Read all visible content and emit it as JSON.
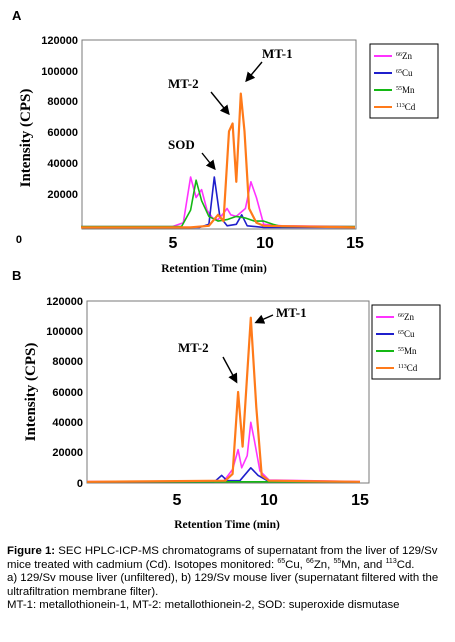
{
  "panels": [
    {
      "label": "A",
      "y_label": "Intensity (CPS)",
      "x_label": "Retention Time (min)",
      "legend": [
        {
          "mass": "66",
          "element": "Zn",
          "color": "#ff33ff"
        },
        {
          "mass": "65",
          "element": "Cu",
          "color": "#1f1fcc"
        },
        {
          "mass": "55",
          "element": "Mn",
          "color": "#14b814"
        },
        {
          "mass": "113",
          "element": "Cd",
          "color": "#ff7a1a"
        }
      ],
      "annotations": [
        {
          "text": "MT-1"
        },
        {
          "text": "MT-2"
        },
        {
          "text": "SOD"
        }
      ],
      "y_ticks": [
        "120000",
        "100000",
        "80000",
        "60000",
        "40000",
        "20000",
        "0"
      ],
      "x_ticks": [
        "5",
        "10",
        "15"
      ]
    },
    {
      "label": "B",
      "y_label": "Intensity (CPS)",
      "x_label": "Retention Time (min)",
      "legend": [
        {
          "mass": "66",
          "element": "Zn",
          "color": "#ff33ff"
        },
        {
          "mass": "65",
          "element": "Cu",
          "color": "#1f1fcc"
        },
        {
          "mass": "55",
          "element": "Mn",
          "color": "#14b814"
        },
        {
          "mass": "113",
          "element": "Cd",
          "color": "#ff7a1a"
        }
      ],
      "annotations": [
        {
          "text": "MT-1"
        },
        {
          "text": "MT-2"
        }
      ],
      "y_ticks": [
        "120000",
        "100000",
        "80000",
        "60000",
        "40000",
        "20000",
        "0"
      ],
      "x_ticks": [
        "5",
        "10",
        "15"
      ]
    }
  ],
  "caption": {
    "figure_label": "Figure 1:",
    "line1_pre": " SEC HPLC-ICP-MS chromatograms of supernatant from the liver of 129/Sv mice treated with cadmium (Cd). Isotopes monitored: ",
    "isotopes": [
      {
        "mass": "65",
        "element": "Cu",
        "after": ", "
      },
      {
        "mass": "66",
        "element": "Zn",
        "after": ", "
      },
      {
        "mass": "55",
        "element": "Mn",
        "after": ", and "
      },
      {
        "mass": "113",
        "element": "Cd",
        "after": "."
      }
    ],
    "line2": "a) 129/Sv mouse liver (unfiltered), b) 129/Sv mouse liver (supernatant filtered with the ultrafiltration membrane filter).",
    "line3": "MT-1: metallothionein-1, MT-2: metallothionein-2, SOD: superoxide dismutase"
  },
  "chart_data": [
    {
      "type": "line",
      "title": "",
      "xlabel": "Retention Time (min)",
      "ylabel": "Intensity (CPS)",
      "xlim": [
        0,
        15
      ],
      "ylim": [
        0,
        120000
      ],
      "grid": false,
      "legend_position": "top-right",
      "series": [
        {
          "name": "66Zn",
          "color": "#ff33ff",
          "points": [
            [
              0,
              1500
            ],
            [
              5,
              1500
            ],
            [
              5.6,
              4000
            ],
            [
              6.0,
              33000
            ],
            [
              6.3,
              20000
            ],
            [
              6.6,
              25000
            ],
            [
              6.9,
              12000
            ],
            [
              7.2,
              7000
            ],
            [
              7.5,
              6000
            ],
            [
              7.8,
              10000
            ],
            [
              8.0,
              13000
            ],
            [
              8.2,
              9000
            ],
            [
              8.5,
              8000
            ],
            [
              9.0,
              13000
            ],
            [
              9.3,
              30000
            ],
            [
              9.6,
              20000
            ],
            [
              10,
              3000
            ],
            [
              11,
              2000
            ],
            [
              15,
              1500
            ]
          ]
        },
        {
          "name": "65Cu",
          "color": "#1f1fcc",
          "points": [
            [
              0,
              1000
            ],
            [
              6.5,
              1000
            ],
            [
              7.0,
              3000
            ],
            [
              7.3,
              33000
            ],
            [
              7.6,
              8000
            ],
            [
              8.0,
              2000
            ],
            [
              8.5,
              3000
            ],
            [
              8.8,
              9000
            ],
            [
              9.1,
              2000
            ],
            [
              10,
              1000
            ],
            [
              15,
              1000
            ]
          ]
        },
        {
          "name": "55Mn",
          "color": "#14b814",
          "points": [
            [
              0,
              1500
            ],
            [
              5.5,
              1500
            ],
            [
              6.0,
              12000
            ],
            [
              6.3,
              31000
            ],
            [
              6.6,
              18000
            ],
            [
              7.0,
              8000
            ],
            [
              7.5,
              5000
            ],
            [
              8.0,
              6000
            ],
            [
              8.5,
              8000
            ],
            [
              9.0,
              7000
            ],
            [
              9.5,
              5000
            ],
            [
              10,
              5000
            ],
            [
              10.5,
              3000
            ],
            [
              11,
              1500
            ],
            [
              15,
              1500
            ]
          ]
        },
        {
          "name": "113Cd",
          "color": "#ff7a1a",
          "points": [
            [
              0,
              1000
            ],
            [
              6.0,
              1000
            ],
            [
              7.0,
              2000
            ],
            [
              7.5,
              9000
            ],
            [
              7.8,
              5000
            ],
            [
              8.1,
              62000
            ],
            [
              8.3,
              67000
            ],
            [
              8.5,
              30000
            ],
            [
              8.75,
              86000
            ],
            [
              8.95,
              62000
            ],
            [
              9.2,
              13000
            ],
            [
              9.6,
              4000
            ],
            [
              10,
              2000
            ],
            [
              15,
              1000
            ]
          ]
        }
      ]
    },
    {
      "type": "line",
      "title": "",
      "xlabel": "Retention Time (min)",
      "ylabel": "Intensity (CPS)",
      "xlim": [
        0,
        15
      ],
      "ylim": [
        0,
        120000
      ],
      "grid": false,
      "legend_position": "top-right",
      "series": [
        {
          "name": "66Zn",
          "color": "#ff33ff",
          "points": [
            [
              0,
              1000
            ],
            [
              7.5,
              1000
            ],
            [
              8.0,
              9000
            ],
            [
              8.3,
              22000
            ],
            [
              8.5,
              10000
            ],
            [
              8.8,
              18000
            ],
            [
              9.0,
              40000
            ],
            [
              9.2,
              28000
            ],
            [
              9.5,
              8000
            ],
            [
              10,
              2000
            ],
            [
              15,
              1000
            ]
          ]
        },
        {
          "name": "65Cu",
          "color": "#1f1fcc",
          "points": [
            [
              0,
              800
            ],
            [
              7.0,
              800
            ],
            [
              7.4,
              5000
            ],
            [
              7.7,
              1500
            ],
            [
              8.4,
              1500
            ],
            [
              9.0,
              10000
            ],
            [
              9.4,
              5000
            ],
            [
              10,
              1000
            ],
            [
              15,
              800
            ]
          ]
        },
        {
          "name": "55Mn",
          "color": "#14b814",
          "points": [
            [
              0,
              800
            ],
            [
              15,
              800
            ]
          ]
        },
        {
          "name": "113Cd",
          "color": "#ff7a1a",
          "points": [
            [
              0,
              800
            ],
            [
              7.6,
              1500
            ],
            [
              8.0,
              6000
            ],
            [
              8.3,
              60000
            ],
            [
              8.55,
              24000
            ],
            [
              9.0,
              109000
            ],
            [
              9.3,
              50000
            ],
            [
              9.6,
              5000
            ],
            [
              10,
              1500
            ],
            [
              15,
              800
            ]
          ]
        }
      ]
    }
  ]
}
